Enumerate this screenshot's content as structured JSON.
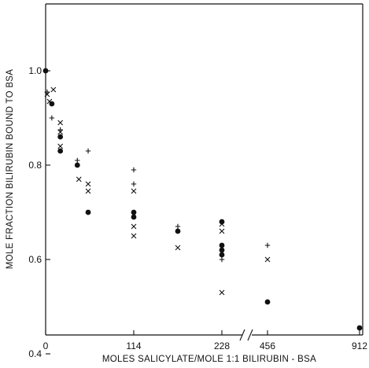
{
  "chart_data": {
    "type": "scatter",
    "xlabel": "MOLES SALICYLATE/MOLE 1:1 BILIRUBIN - BSA",
    "ylabel": "MOLE FRACTION BILIRUBIN BOUND TO BSA",
    "x_axis": {
      "scale": "piecewise-linear with axis break after 228",
      "ticks": [
        0,
        114,
        228,
        456,
        912
      ],
      "tick_labels": [
        "0",
        "114",
        "228",
        "456",
        "912"
      ]
    },
    "y_axis": {
      "ticks": [
        0.4,
        0.6,
        0.8,
        1.0
      ],
      "tick_labels": [
        "0.4",
        "0.6",
        "0.8",
        "1.0"
      ]
    },
    "grid": false,
    "legend": "none",
    "series": [
      {
        "marker": "filled-circle",
        "points": [
          [
            0,
            1.0
          ],
          [
            8,
            0.93
          ],
          [
            19,
            0.86
          ],
          [
            19,
            0.83
          ],
          [
            41,
            0.8
          ],
          [
            55,
            0.7
          ],
          [
            114,
            0.7
          ],
          [
            114,
            0.69
          ],
          [
            171,
            0.66
          ],
          [
            228,
            0.68
          ],
          [
            228,
            0.63
          ],
          [
            228,
            0.62
          ],
          [
            228,
            0.61
          ],
          [
            456,
            0.51
          ],
          [
            912,
            0.455
          ]
        ]
      },
      {
        "marker": "cross-x",
        "points": [
          [
            2,
            0.95
          ],
          [
            5,
            0.935
          ],
          [
            10,
            0.96
          ],
          [
            19,
            0.89
          ],
          [
            19,
            0.87
          ],
          [
            19,
            0.84
          ],
          [
            43,
            0.77
          ],
          [
            55,
            0.76
          ],
          [
            55,
            0.745
          ],
          [
            114,
            0.745
          ],
          [
            114,
            0.67
          ],
          [
            114,
            0.65
          ],
          [
            171,
            0.625
          ],
          [
            228,
            0.675
          ],
          [
            228,
            0.66
          ],
          [
            228,
            0.53
          ],
          [
            456,
            0.6
          ]
        ]
      },
      {
        "marker": "plus",
        "points": [
          [
            2,
            0.955
          ],
          [
            8,
            0.9
          ],
          [
            19,
            0.875
          ],
          [
            41,
            0.81
          ],
          [
            55,
            0.83
          ],
          [
            114,
            0.79
          ],
          [
            114,
            0.76
          ],
          [
            171,
            0.67
          ],
          [
            228,
            0.6
          ],
          [
            456,
            0.63
          ]
        ]
      }
    ]
  }
}
